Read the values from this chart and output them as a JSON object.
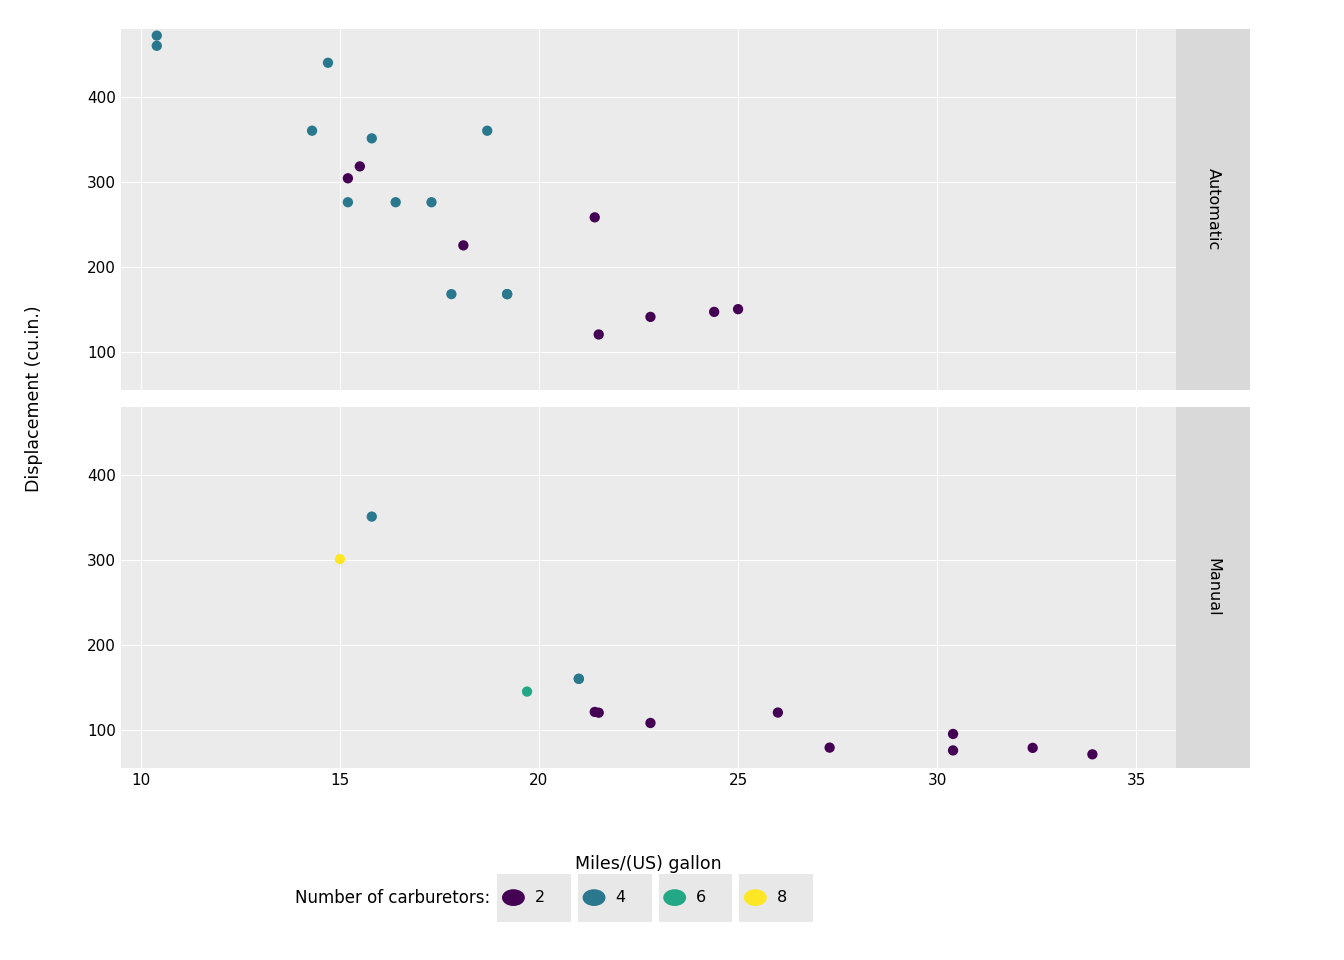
{
  "title": "",
  "xlabel": "Miles/(US) gallon",
  "ylabel": "Displacement (cu.in.)",
  "legend_title": "Number of carburetors:",
  "facet_labels": [
    "Automatic",
    "Manual"
  ],
  "background_color": "#EBEBEB",
  "strip_color": "#D9D9D9",
  "grid_color": "#FFFFFF",
  "carb_colors": {
    "1": "#440154",
    "2": "#440154",
    "3": "#2A788E",
    "4": "#2A788E",
    "6": "#22A884",
    "8": "#FDE725"
  },
  "legend_carb_colors": {
    "2": "#440154",
    "4": "#2A788E",
    "6": "#22A884",
    "8": "#FDE725"
  },
  "automatic": [
    {
      "mpg": 10.4,
      "disp": 472,
      "carb": 4
    },
    {
      "mpg": 10.4,
      "disp": 460,
      "carb": 4
    },
    {
      "mpg": 14.3,
      "disp": 360,
      "carb": 4
    },
    {
      "mpg": 14.7,
      "disp": 440,
      "carb": 4
    },
    {
      "mpg": 15.2,
      "disp": 275.8,
      "carb": 3
    },
    {
      "mpg": 15.2,
      "disp": 304.0,
      "carb": 2
    },
    {
      "mpg": 15.5,
      "disp": 318.0,
      "carb": 2
    },
    {
      "mpg": 15.8,
      "disp": 351.0,
      "carb": 4
    },
    {
      "mpg": 16.4,
      "disp": 275.8,
      "carb": 3
    },
    {
      "mpg": 17.3,
      "disp": 275.8,
      "carb": 3
    },
    {
      "mpg": 17.8,
      "disp": 167.6,
      "carb": 4
    },
    {
      "mpg": 18.1,
      "disp": 225.0,
      "carb": 1
    },
    {
      "mpg": 18.7,
      "disp": 360.0,
      "carb": 4
    },
    {
      "mpg": 19.2,
      "disp": 167.6,
      "carb": 4
    },
    {
      "mpg": 19.2,
      "disp": 167.6,
      "carb": 4
    },
    {
      "mpg": 21.4,
      "disp": 258.0,
      "carb": 1
    },
    {
      "mpg": 21.5,
      "disp": 120.1,
      "carb": 1
    },
    {
      "mpg": 24.4,
      "disp": 146.7,
      "carb": 2
    },
    {
      "mpg": 22.8,
      "disp": 140.8,
      "carb": 2
    },
    {
      "mpg": 25.0,
      "disp": 149.9,
      "carb": 2
    }
  ],
  "manual": [
    {
      "mpg": 15.0,
      "disp": 301.0,
      "carb": 8
    },
    {
      "mpg": 15.8,
      "disp": 351.0,
      "carb": 4
    },
    {
      "mpg": 19.7,
      "disp": 145.0,
      "carb": 6
    },
    {
      "mpg": 21.0,
      "disp": 160.0,
      "carb": 4
    },
    {
      "mpg": 21.0,
      "disp": 160.0,
      "carb": 4
    },
    {
      "mpg": 21.4,
      "disp": 121.0,
      "carb": 1
    },
    {
      "mpg": 21.5,
      "disp": 120.1,
      "carb": 1
    },
    {
      "mpg": 22.8,
      "disp": 108.0,
      "carb": 1
    },
    {
      "mpg": 26.0,
      "disp": 120.3,
      "carb": 2
    },
    {
      "mpg": 27.3,
      "disp": 79.0,
      "carb": 1
    },
    {
      "mpg": 30.4,
      "disp": 95.1,
      "carb": 2
    },
    {
      "mpg": 30.4,
      "disp": 75.7,
      "carb": 1
    },
    {
      "mpg": 32.4,
      "disp": 78.7,
      "carb": 1
    },
    {
      "mpg": 33.9,
      "disp": 71.1,
      "carb": 1
    }
  ],
  "xlim": [
    9.5,
    36
  ],
  "ylim": [
    55,
    480
  ],
  "xticks": [
    10,
    15,
    20,
    25,
    30,
    35
  ],
  "yticks": [
    100,
    200,
    300,
    400
  ],
  "marker_size": 55
}
